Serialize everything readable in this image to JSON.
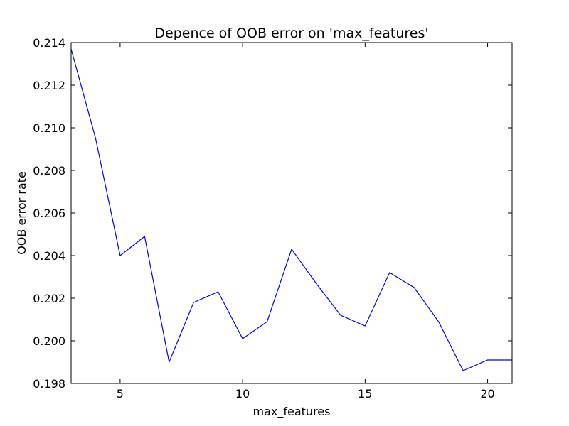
{
  "chart_data": {
    "type": "line",
    "title": "Depence of OOB error on 'max_features'",
    "xlabel": "max_features",
    "ylabel": "OOB error rate",
    "xlim": [
      3,
      21
    ],
    "ylim": [
      0.198,
      0.214
    ],
    "x_ticks": [
      5,
      10,
      15,
      20
    ],
    "y_ticks": [
      "0.198",
      "0.200",
      "0.202",
      "0.204",
      "0.206",
      "0.208",
      "0.210",
      "0.212",
      "0.214"
    ],
    "grid": false,
    "series": [
      {
        "color": "#0000ff",
        "x": [
          3,
          4,
          5,
          6,
          7,
          8,
          9,
          10,
          11,
          12,
          13,
          14,
          15,
          16,
          17,
          18,
          19,
          20,
          21
        ],
        "y": [
          0.2137,
          0.2095,
          0.204,
          0.2049,
          0.199,
          0.2018,
          0.2023,
          0.2001,
          0.2009,
          0.2043,
          0.2027,
          0.2012,
          0.2007,
          0.2032,
          0.2025,
          0.2009,
          0.1986,
          0.1991,
          0.1991
        ]
      }
    ]
  }
}
